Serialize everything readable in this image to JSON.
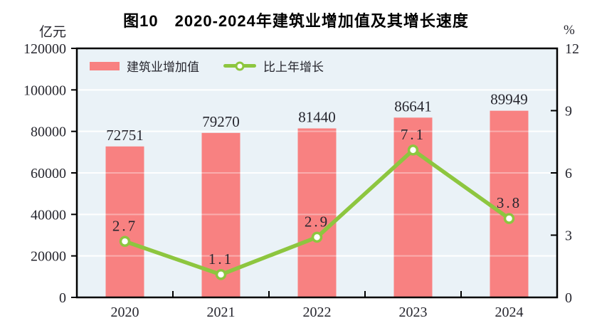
{
  "chart_data": {
    "type": "bar",
    "title": "图10　2020-2024年建筑业增加值及其增长速度",
    "categories": [
      "2020",
      "2021",
      "2022",
      "2023",
      "2024"
    ],
    "series": [
      {
        "name": "建筑业增加值",
        "type": "bar",
        "axis": "left",
        "color": "#f88181",
        "values": [
          72751,
          79270,
          81440,
          86641,
          89949
        ],
        "labels": [
          "72751",
          "79270",
          "81440",
          "86641",
          "89949"
        ]
      },
      {
        "name": "比上年增长",
        "type": "line",
        "axis": "right",
        "color": "#8dc63f",
        "marker_fill": "#ffffff",
        "values": [
          2.7,
          1.1,
          2.9,
          7.1,
          3.8
        ],
        "labels": [
          "2.7",
          "1.1",
          "2.9",
          "7.1",
          "3.8"
        ]
      }
    ],
    "left_axis": {
      "unit": "亿元",
      "min": 0,
      "max": 120000,
      "ticks": [
        0,
        20000,
        40000,
        60000,
        80000,
        100000,
        120000
      ]
    },
    "right_axis": {
      "unit": "%",
      "min": 0,
      "max": 12,
      "ticks": [
        0,
        3,
        6,
        9,
        12
      ]
    },
    "legend_position": "top-left-inside",
    "grid": "horizontal-white",
    "colors": {
      "plot_bg": "#eaf2f7",
      "grid": "#ffffff",
      "border": "#000000",
      "text": "#26262e"
    }
  }
}
